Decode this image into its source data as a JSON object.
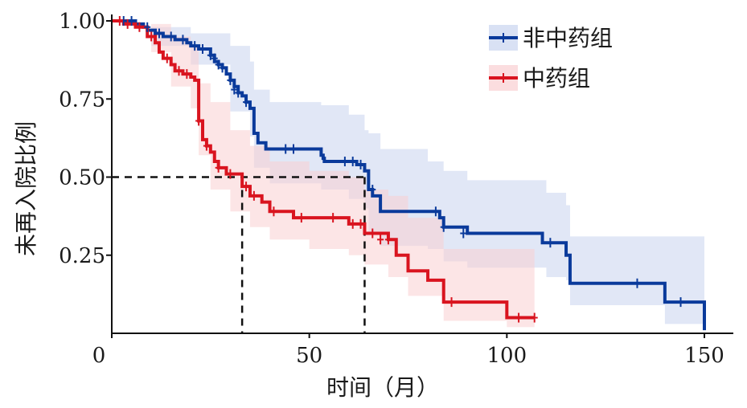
{
  "chart_data": {
    "type": "line",
    "subtype": "kaplan-meier",
    "title": "",
    "xlabel": "时间（月）",
    "ylabel": "未再入院比例",
    "xlim": [
      0,
      150
    ],
    "ylim": [
      0,
      1.0
    ],
    "xticks": [
      0,
      50,
      100,
      150
    ],
    "xtick_labels": [
      "0",
      "50",
      "100",
      "150"
    ],
    "yticks": [
      0.25,
      0.5,
      0.75,
      1.0
    ],
    "ytick_labels": [
      "0.25",
      "0.50",
      "0.75",
      "1.00"
    ],
    "grid": false,
    "legend_position": "top-right",
    "reference_lines": {
      "y": 0.5,
      "median_x": [
        33,
        64
      ]
    },
    "series": [
      {
        "name": "非中药组",
        "color": "#0a3a9b",
        "band_color": "#c9d4ef",
        "steps": [
          [
            0,
            1.0
          ],
          [
            6,
            0.99
          ],
          [
            8,
            0.98
          ],
          [
            9,
            0.97
          ],
          [
            11,
            0.96
          ],
          [
            13,
            0.95
          ],
          [
            16,
            0.94
          ],
          [
            19,
            0.93
          ],
          [
            20,
            0.92
          ],
          [
            22,
            0.91
          ],
          [
            25,
            0.89
          ],
          [
            26,
            0.87
          ],
          [
            27,
            0.86
          ],
          [
            28,
            0.85
          ],
          [
            29,
            0.83
          ],
          [
            30,
            0.81
          ],
          [
            31,
            0.79
          ],
          [
            32,
            0.77
          ],
          [
            33,
            0.76
          ],
          [
            34,
            0.74
          ],
          [
            35,
            0.72
          ],
          [
            36,
            0.64
          ],
          [
            37,
            0.61
          ],
          [
            39,
            0.59
          ],
          [
            53,
            0.57
          ],
          [
            53.5,
            0.56
          ],
          [
            53.8,
            0.55
          ],
          [
            62,
            0.54
          ],
          [
            64,
            0.52
          ],
          [
            65,
            0.46
          ],
          [
            66,
            0.44
          ],
          [
            68,
            0.39
          ],
          [
            83,
            0.37
          ],
          [
            84,
            0.34
          ],
          [
            90,
            0.32
          ],
          [
            109,
            0.29
          ],
          [
            115,
            0.25
          ],
          [
            116,
            0.16
          ],
          [
            140,
            0.1
          ],
          [
            150,
            0.01
          ]
        ],
        "censored": [
          [
            3,
            1.0
          ],
          [
            5,
            1.0
          ],
          [
            9,
            0.98
          ],
          [
            12,
            0.96
          ],
          [
            15,
            0.95
          ],
          [
            18,
            0.94
          ],
          [
            21,
            0.92
          ],
          [
            23,
            0.91
          ],
          [
            25,
            0.89
          ],
          [
            26,
            0.88
          ],
          [
            27,
            0.86
          ],
          [
            28,
            0.85
          ],
          [
            30,
            0.81
          ],
          [
            31,
            0.78
          ],
          [
            32,
            0.77
          ],
          [
            34,
            0.74
          ],
          [
            44,
            0.59
          ],
          [
            46,
            0.59
          ],
          [
            59,
            0.55
          ],
          [
            61,
            0.55
          ],
          [
            63,
            0.54
          ],
          [
            66,
            0.46
          ],
          [
            82,
            0.39
          ],
          [
            84,
            0.34
          ],
          [
            89,
            0.32
          ],
          [
            111,
            0.29
          ],
          [
            133,
            0.16
          ],
          [
            144,
            0.1
          ]
        ],
        "band": [
          [
            0,
            1.0,
            1.0
          ],
          [
            10,
            0.98,
            0.92
          ],
          [
            20,
            0.96,
            0.86
          ],
          [
            30,
            0.92,
            0.71
          ],
          [
            35,
            0.87,
            0.63
          ],
          [
            36,
            0.78,
            0.53
          ],
          [
            40,
            0.74,
            0.48
          ],
          [
            53,
            0.73,
            0.46
          ],
          [
            60,
            0.7,
            0.43
          ],
          [
            64,
            0.65,
            0.4
          ],
          [
            65,
            0.64,
            0.32
          ],
          [
            68,
            0.59,
            0.28
          ],
          [
            80,
            0.55,
            0.27
          ],
          [
            84,
            0.52,
            0.23
          ],
          [
            90,
            0.49,
            0.21
          ],
          [
            110,
            0.45,
            0.18
          ],
          [
            115,
            0.41,
            0.17
          ],
          [
            116,
            0.31,
            0.09
          ],
          [
            140,
            0.31,
            0.03
          ],
          [
            150,
            0.31,
            0.01
          ]
        ]
      },
      {
        "name": "中药组",
        "color": "#d9141f",
        "band_color": "#f9cfd2",
        "steps": [
          [
            0,
            1.0
          ],
          [
            3,
            0.99
          ],
          [
            6,
            0.98
          ],
          [
            9,
            0.95
          ],
          [
            11,
            0.93
          ],
          [
            12,
            0.9
          ],
          [
            13,
            0.88
          ],
          [
            15,
            0.86
          ],
          [
            16,
            0.84
          ],
          [
            18,
            0.83
          ],
          [
            20,
            0.82
          ],
          [
            21,
            0.81
          ],
          [
            22,
            0.68
          ],
          [
            23,
            0.62
          ],
          [
            24,
            0.6
          ],
          [
            25,
            0.58
          ],
          [
            26,
            0.55
          ],
          [
            27,
            0.53
          ],
          [
            29,
            0.51
          ],
          [
            33,
            0.47
          ],
          [
            35,
            0.44
          ],
          [
            38,
            0.42
          ],
          [
            40,
            0.39
          ],
          [
            46,
            0.37
          ],
          [
            60,
            0.35
          ],
          [
            64,
            0.32
          ],
          [
            70,
            0.3
          ],
          [
            72,
            0.25
          ],
          [
            75,
            0.2
          ],
          [
            80,
            0.17
          ],
          [
            84,
            0.1
          ],
          [
            100,
            0.05
          ],
          [
            107,
            0.05
          ]
        ],
        "censored": [
          [
            2,
            1.0
          ],
          [
            4,
            0.99
          ],
          [
            7,
            0.98
          ],
          [
            10,
            0.95
          ],
          [
            14,
            0.88
          ],
          [
            17,
            0.84
          ],
          [
            19,
            0.83
          ],
          [
            22,
            0.68
          ],
          [
            24,
            0.6
          ],
          [
            27,
            0.53
          ],
          [
            30,
            0.51
          ],
          [
            34,
            0.47
          ],
          [
            36,
            0.44
          ],
          [
            41,
            0.39
          ],
          [
            48,
            0.37
          ],
          [
            56,
            0.37
          ],
          [
            61,
            0.35
          ],
          [
            63,
            0.35
          ],
          [
            66,
            0.32
          ],
          [
            68,
            0.3
          ],
          [
            70,
            0.3
          ],
          [
            86,
            0.1
          ],
          [
            103,
            0.05
          ],
          [
            107,
            0.05
          ]
        ],
        "band": [
          [
            0,
            1.0,
            1.0
          ],
          [
            10,
            0.99,
            0.9
          ],
          [
            15,
            0.95,
            0.79
          ],
          [
            20,
            0.92,
            0.72
          ],
          [
            22,
            0.8,
            0.57
          ],
          [
            25,
            0.74,
            0.46
          ],
          [
            30,
            0.65,
            0.39
          ],
          [
            35,
            0.6,
            0.34
          ],
          [
            40,
            0.55,
            0.3
          ],
          [
            50,
            0.52,
            0.27
          ],
          [
            60,
            0.5,
            0.25
          ],
          [
            64,
            0.46,
            0.22
          ],
          [
            70,
            0.44,
            0.18
          ],
          [
            75,
            0.37,
            0.12
          ],
          [
            84,
            0.27,
            0.04
          ],
          [
            100,
            0.27,
            0.02
          ],
          [
            107,
            0.26,
            0.02
          ]
        ]
      }
    ]
  }
}
